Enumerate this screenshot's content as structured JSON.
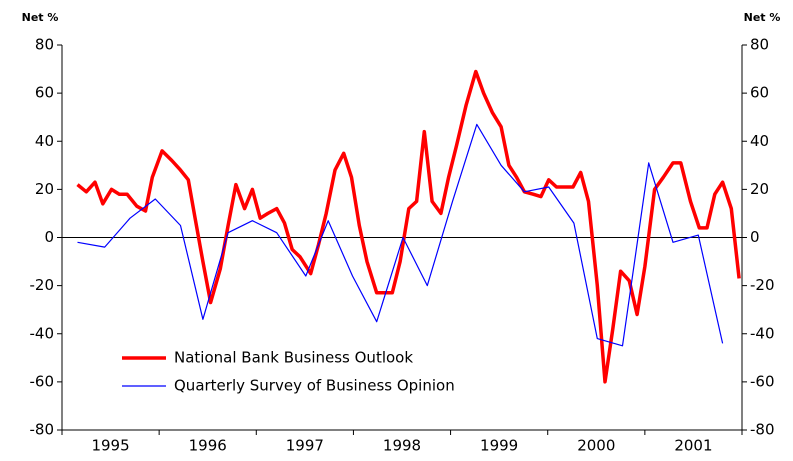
{
  "chart_data": {
    "type": "line",
    "y_label": "Net %",
    "y2_label": "Net %",
    "xlim": [
      1995,
      2002
    ],
    "xticks": [
      {
        "value": 1995.5,
        "label": "1995"
      },
      {
        "value": 1996.5,
        "label": "1996"
      },
      {
        "value": 1997.5,
        "label": "1997"
      },
      {
        "value": 1998.5,
        "label": "1998"
      },
      {
        "value": 1999.5,
        "label": "1999"
      },
      {
        "value": 2000.5,
        "label": "2000"
      },
      {
        "value": 2001.5,
        "label": "2001"
      }
    ],
    "x_minor_ticks": [
      1995,
      1996,
      1997,
      1998,
      1999,
      2000,
      2001,
      2002
    ],
    "ylim": [
      -80,
      80
    ],
    "yticks": [
      -80,
      -60,
      -40,
      -20,
      0,
      20,
      40,
      60,
      80
    ],
    "y2lim": [
      -80,
      80
    ],
    "y2ticks": [
      -80,
      -60,
      -40,
      -20,
      0,
      20,
      40,
      60,
      80
    ],
    "legend": "lower left",
    "series": [
      {
        "name": "National Bank Business Outlook",
        "color": "#ff0000",
        "line_width": 3.5,
        "x": [
          1995.16,
          1995.25,
          1995.34,
          1995.42,
          1995.51,
          1995.59,
          1995.67,
          1995.77,
          1995.86,
          1995.93,
          1996.03,
          1996.13,
          1996.22,
          1996.3,
          1996.37,
          1996.45,
          1996.53,
          1996.63,
          1996.71,
          1996.79,
          1996.88,
          1996.96,
          1997.04,
          1997.12,
          1997.21,
          1997.29,
          1997.37,
          1997.45,
          1997.56,
          1997.64,
          1997.72,
          1997.81,
          1997.9,
          1997.98,
          1998.06,
          1998.14,
          1998.24,
          1998.32,
          1998.4,
          1998.48,
          1998.57,
          1998.65,
          1998.73,
          1998.81,
          1998.9,
          1998.98,
          1999.06,
          1999.16,
          1999.26,
          1999.34,
          1999.43,
          1999.52,
          1999.6,
          1999.68,
          1999.76,
          1999.85,
          1999.93,
          2000.01,
          2000.09,
          2000.18,
          2000.26,
          2000.34,
          2000.42,
          2000.51,
          2000.59,
          2000.67,
          2000.75,
          2000.84,
          2000.92,
          2001.0,
          2001.1,
          2001.19,
          2001.29,
          2001.37,
          2001.47,
          2001.56,
          2001.64,
          2001.72,
          2001.8,
          2001.89,
          2001.97
        ],
        "values": [
          22,
          19,
          23,
          14,
          20,
          18,
          18,
          13,
          11,
          25,
          36,
          32,
          28,
          24,
          8,
          -10,
          -27,
          -13,
          5,
          22,
          12,
          20,
          8,
          10,
          12,
          6,
          -5,
          -8,
          -15,
          -3,
          10,
          28,
          35,
          25,
          5,
          -10,
          -23,
          -23,
          -23,
          -10,
          12,
          15,
          44,
          15,
          10,
          25,
          38,
          55,
          69,
          60,
          52,
          46,
          30,
          25,
          19,
          18,
          17,
          24,
          21,
          21,
          21,
          27,
          15,
          -20,
          -60,
          -38,
          -14,
          -18,
          -32,
          -12,
          20,
          25,
          31,
          31,
          15,
          4,
          4,
          18,
          23,
          12,
          -17
        ]
      },
      {
        "name": "Quarterly Survey of Business Opinion",
        "color": "#0000ff",
        "line_width": 1.2,
        "axis": "y2",
        "x": [
          1995.16,
          1995.44,
          1995.7,
          1995.96,
          1996.22,
          1996.45,
          1996.71,
          1996.96,
          1997.21,
          1997.51,
          1997.74,
          1997.99,
          1998.24,
          1998.51,
          1998.76,
          1999.02,
          1999.27,
          1999.52,
          1999.76,
          2000.01,
          2000.27,
          2000.51,
          2000.77,
          2001.04,
          2001.29,
          2001.55,
          2001.8
        ],
        "values": [
          -2,
          -4,
          8,
          16,
          5,
          -34,
          2,
          7,
          2,
          -16,
          7,
          -16,
          -35,
          0,
          -20,
          15,
          47,
          30,
          19,
          21,
          6,
          -42,
          -45,
          31,
          -2,
          1,
          -44
        ]
      }
    ]
  }
}
